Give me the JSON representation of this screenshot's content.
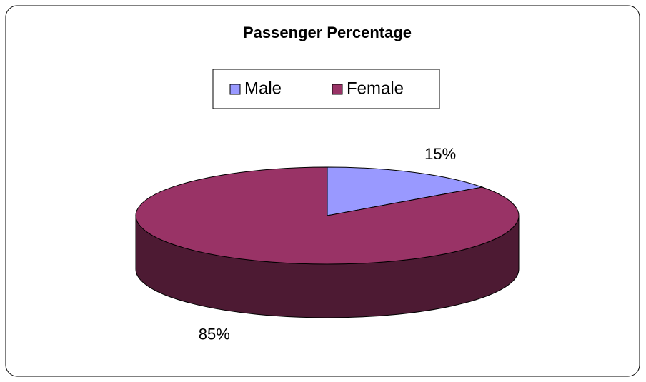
{
  "chart_data": {
    "type": "pie",
    "title": "Passenger Percentage",
    "categories": [
      "Male",
      "Female"
    ],
    "values": [
      15,
      85
    ],
    "value_labels": [
      "15%",
      "85%"
    ],
    "colors": [
      "#9999ff",
      "#993366"
    ],
    "legend": "top"
  }
}
